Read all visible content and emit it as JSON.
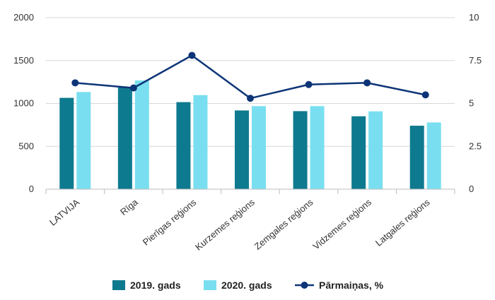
{
  "chart_data": {
    "type": "bar",
    "categories": [
      "LATVIJA",
      "Rīga",
      "Pierīgas reģions",
      "Kurzemes reģions",
      "Zemgales reģions",
      "Vidzemes reģions",
      "Latgales reģions"
    ],
    "series": [
      {
        "name": "2019. gads",
        "type": "bar",
        "axis": "left",
        "color": "#0e7a8f",
        "values": [
          1065,
          1190,
          1015,
          918,
          910,
          850,
          740
        ]
      },
      {
        "name": "2020. gads",
        "type": "bar",
        "axis": "left",
        "color": "#79dff0",
        "values": [
          1133,
          1268,
          1097,
          968,
          968,
          908,
          778
        ]
      },
      {
        "name": "Pārmaiņas, %",
        "type": "line",
        "axis": "right",
        "color": "#0d3477",
        "values": [
          6.2,
          5.9,
          7.8,
          5.3,
          6.1,
          6.2,
          5.5
        ]
      }
    ],
    "y_left": {
      "min": 0,
      "max": 2000,
      "ticks": [
        "0",
        "500",
        "1000",
        "1500",
        "2000"
      ]
    },
    "y_right": {
      "min": 0,
      "max": 10,
      "ticks": [
        "0",
        "2.5",
        "5",
        "7.5",
        "10"
      ]
    },
    "grid": true,
    "legend_position": "bottom-center"
  }
}
